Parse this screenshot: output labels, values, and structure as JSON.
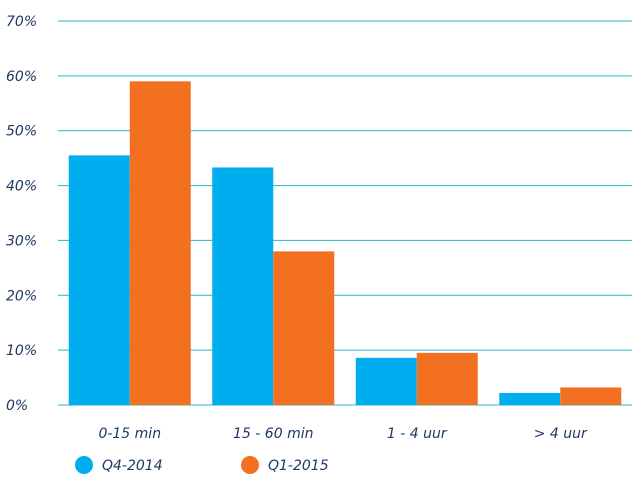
{
  "chart_data": {
    "type": "bar",
    "categories": [
      "0-15 min",
      "15 - 60 min",
      "1 - 4 uur",
      "> 4 uur"
    ],
    "series": [
      {
        "name": "Q4-2014",
        "values": [
          45.5,
          43.3,
          8.6,
          2.2
        ],
        "color": "#00aeef"
      },
      {
        "name": "Q1-2015",
        "values": [
          59.0,
          28.0,
          9.5,
          3.2
        ],
        "color": "#f37021"
      }
    ],
    "yticks": [
      "0%",
      "10%",
      "20%",
      "30%",
      "40%",
      "50%",
      "60%",
      "70%"
    ],
    "ylim": [
      0,
      70
    ],
    "grid": true,
    "gridline_color": "#2ab5c8",
    "legend_position": "bottom-left"
  }
}
